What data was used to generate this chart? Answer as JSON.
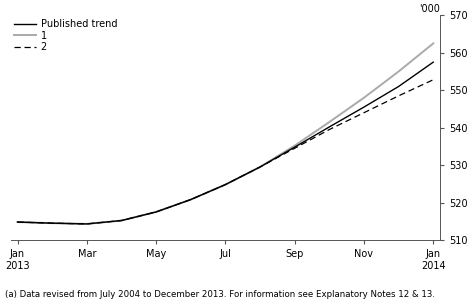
{
  "ylabel": "'000",
  "footnote": "(a) Data revised from July 2004 to December 2013. For information see Explanatory Notes 12 & 13.",
  "ylim": [
    510,
    570
  ],
  "yticks": [
    510,
    520,
    530,
    540,
    550,
    560,
    570
  ],
  "x_labels": [
    "Jan\n2013",
    "Mar",
    "May",
    "Jul",
    "Sep",
    "Nov",
    "Jan\n2014"
  ],
  "x_positions": [
    0,
    2,
    4,
    6,
    8,
    10,
    12
  ],
  "published_trend": [
    514.8,
    514.5,
    514.3,
    515.2,
    517.5,
    520.8,
    524.8,
    529.5,
    534.8,
    540.2,
    545.5,
    551.0,
    557.5
  ],
  "line1": [
    514.8,
    514.5,
    514.3,
    515.2,
    517.5,
    520.8,
    524.8,
    529.5,
    535.2,
    541.5,
    548.0,
    555.0,
    562.5
  ],
  "line2": [
    514.8,
    514.5,
    514.3,
    515.2,
    517.5,
    520.8,
    524.8,
    529.5,
    534.5,
    539.5,
    544.0,
    548.5,
    552.8
  ],
  "published_color": "#000000",
  "line1_color": "#aaaaaa",
  "line2_color": "#000000",
  "legend_labels": [
    "Published trend",
    "1",
    "2"
  ],
  "background_color": "#ffffff",
  "spine_color": "#555555",
  "tick_fontsize": 7.0,
  "legend_fontsize": 7.0,
  "footnote_fontsize": 6.2
}
